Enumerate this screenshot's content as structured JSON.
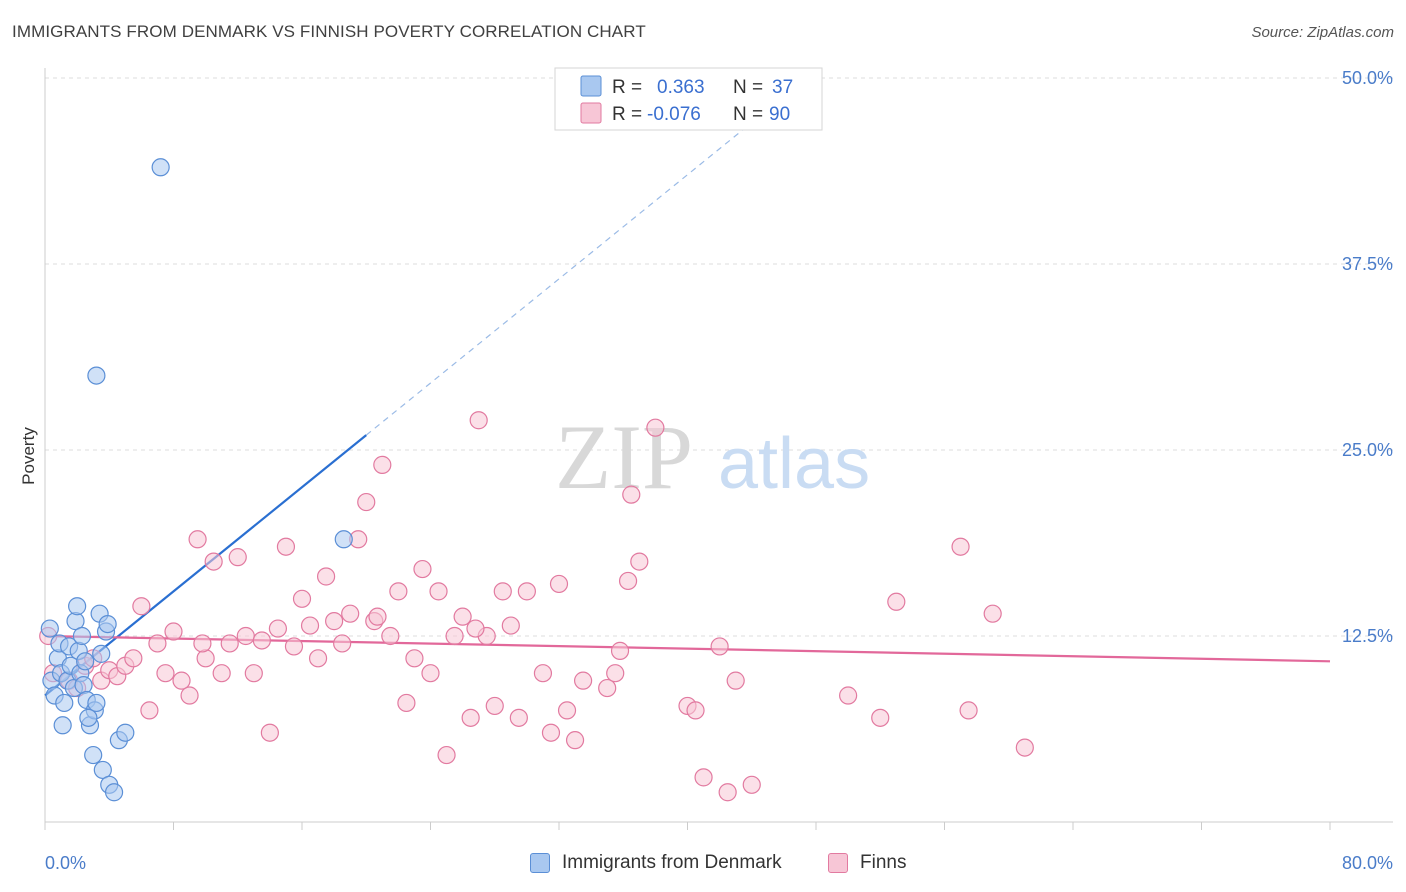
{
  "header": {
    "title": "IMMIGRANTS FROM DENMARK VS FINNISH POVERTY CORRELATION CHART",
    "source": "Source: ZipAtlas.com"
  },
  "watermark": {
    "zip": "ZIP",
    "atlas": "atlas"
  },
  "stats": [
    {
      "r_label": "R =",
      "r_value": "0.363",
      "n_label": "N =",
      "n_value": "37",
      "color": "#5b8fd6"
    },
    {
      "r_label": "R =",
      "r_value": "-0.076",
      "n_label": "N =",
      "n_value": "90",
      "color": "#e27aa0"
    }
  ],
  "legend": [
    {
      "label": "Immigrants from Denmark",
      "color": "#a9c8f0",
      "border": "#5b8fd6"
    },
    {
      "label": "Finns",
      "color": "#f7c6d6",
      "border": "#e27aa0"
    }
  ],
  "chart_data": {
    "type": "scatter",
    "xlabel": "",
    "ylabel": "Poverty",
    "xlim": [
      0,
      80
    ],
    "ylim": [
      0,
      50
    ],
    "x_tick_labels": [
      "0.0%",
      "80.0%"
    ],
    "y_ticks": [
      12.5,
      25.0,
      37.5,
      50.0
    ],
    "y_tick_labels": [
      "12.5%",
      "25.0%",
      "37.5%",
      "50.0%"
    ],
    "grid": true,
    "series": [
      {
        "name": "Immigrants from Denmark",
        "color": "#5b8fd6",
        "fill": "#a9c8f0",
        "trend": {
          "x": [
            0,
            20.0
          ],
          "y": [
            8.5,
            26.0
          ],
          "dashed_to_x": 44.0
        },
        "points": [
          [
            0.3,
            13.0
          ],
          [
            0.4,
            9.5
          ],
          [
            0.6,
            8.5
          ],
          [
            0.8,
            11.0
          ],
          [
            0.9,
            12.0
          ],
          [
            1.0,
            10.0
          ],
          [
            1.2,
            8.0
          ],
          [
            1.4,
            9.5
          ],
          [
            1.5,
            11.8
          ],
          [
            1.6,
            10.5
          ],
          [
            1.8,
            9.0
          ],
          [
            1.9,
            13.5
          ],
          [
            2.0,
            14.5
          ],
          [
            2.1,
            11.5
          ],
          [
            2.2,
            10.0
          ],
          [
            2.3,
            12.5
          ],
          [
            2.4,
            9.2
          ],
          [
            2.5,
            10.8
          ],
          [
            2.6,
            8.2
          ],
          [
            2.8,
            6.5
          ],
          [
            3.0,
            4.5
          ],
          [
            3.1,
            7.5
          ],
          [
            3.2,
            8.0
          ],
          [
            3.4,
            14.0
          ],
          [
            3.5,
            11.3
          ],
          [
            3.6,
            3.5
          ],
          [
            3.8,
            12.8
          ],
          [
            3.9,
            13.3
          ],
          [
            4.0,
            2.5
          ],
          [
            4.3,
            2.0
          ],
          [
            4.6,
            5.5
          ],
          [
            1.1,
            6.5
          ],
          [
            2.7,
            7.0
          ],
          [
            5.0,
            6.0
          ],
          [
            3.2,
            30.0
          ],
          [
            7.2,
            44.0
          ],
          [
            18.6,
            19.0
          ]
        ]
      },
      {
        "name": "Finns",
        "color": "#e27aa0",
        "fill": "#f7c6d6",
        "trend": {
          "x": [
            0,
            80
          ],
          "y": [
            12.5,
            10.8
          ]
        },
        "points": [
          [
            0.2,
            12.5
          ],
          [
            0.5,
            10.0
          ],
          [
            1.5,
            9.5
          ],
          [
            2.0,
            9.0
          ],
          [
            2.5,
            10.5
          ],
          [
            3.0,
            11.0
          ],
          [
            3.5,
            9.5
          ],
          [
            4.0,
            10.2
          ],
          [
            4.5,
            9.8
          ],
          [
            5.0,
            10.5
          ],
          [
            5.5,
            11.0
          ],
          [
            6.0,
            14.5
          ],
          [
            6.5,
            7.5
          ],
          [
            7.0,
            12.0
          ],
          [
            7.5,
            10.0
          ],
          [
            8.0,
            12.8
          ],
          [
            8.5,
            9.5
          ],
          [
            9.0,
            8.5
          ],
          [
            9.5,
            19.0
          ],
          [
            10.0,
            11.0
          ],
          [
            10.5,
            17.5
          ],
          [
            11.0,
            10.0
          ],
          [
            11.5,
            12.0
          ],
          [
            12.0,
            17.8
          ],
          [
            12.5,
            12.5
          ],
          [
            13.0,
            10.0
          ],
          [
            13.5,
            12.2
          ],
          [
            14.0,
            6.0
          ],
          [
            14.5,
            13.0
          ],
          [
            15.0,
            18.5
          ],
          [
            15.5,
            11.8
          ],
          [
            16.0,
            15.0
          ],
          [
            16.5,
            13.2
          ],
          [
            17.0,
            11.0
          ],
          [
            17.5,
            16.5
          ],
          [
            18.0,
            13.5
          ],
          [
            18.5,
            12.0
          ],
          [
            19.0,
            14.0
          ],
          [
            19.5,
            19.0
          ],
          [
            20.0,
            21.5
          ],
          [
            20.5,
            13.5
          ],
          [
            21.0,
            24.0
          ],
          [
            21.5,
            12.5
          ],
          [
            22.0,
            15.5
          ],
          [
            22.5,
            8.0
          ],
          [
            23.0,
            11.0
          ],
          [
            23.5,
            17.0
          ],
          [
            24.0,
            10.0
          ],
          [
            24.5,
            15.5
          ],
          [
            25.0,
            4.5
          ],
          [
            25.5,
            12.5
          ],
          [
            26.0,
            13.8
          ],
          [
            26.5,
            7.0
          ],
          [
            27.0,
            27.0
          ],
          [
            27.5,
            12.5
          ],
          [
            28.0,
            7.8
          ],
          [
            28.5,
            15.5
          ],
          [
            29.0,
            13.2
          ],
          [
            29.5,
            7.0
          ],
          [
            30.0,
            15.5
          ],
          [
            31.0,
            10.0
          ],
          [
            31.5,
            6.0
          ],
          [
            32.0,
            16.0
          ],
          [
            32.5,
            7.5
          ],
          [
            33.0,
            5.5
          ],
          [
            33.5,
            9.5
          ],
          [
            35.0,
            9.0
          ],
          [
            35.5,
            10.0
          ],
          [
            35.8,
            11.5
          ],
          [
            36.3,
            16.2
          ],
          [
            36.5,
            22.0
          ],
          [
            37.0,
            17.5
          ],
          [
            38.0,
            26.5
          ],
          [
            40.0,
            7.8
          ],
          [
            40.5,
            7.5
          ],
          [
            41.0,
            3.0
          ],
          [
            42.0,
            11.8
          ],
          [
            42.5,
            2.0
          ],
          [
            43.0,
            9.5
          ],
          [
            44.0,
            2.5
          ],
          [
            50.0,
            8.5
          ],
          [
            52.0,
            7.0
          ],
          [
            53.0,
            14.8
          ],
          [
            57.0,
            18.5
          ],
          [
            57.5,
            7.5
          ],
          [
            59.0,
            14.0
          ],
          [
            61.0,
            5.0
          ],
          [
            20.7,
            13.8
          ],
          [
            9.8,
            12.0
          ],
          [
            26.8,
            13.0
          ]
        ]
      }
    ]
  }
}
